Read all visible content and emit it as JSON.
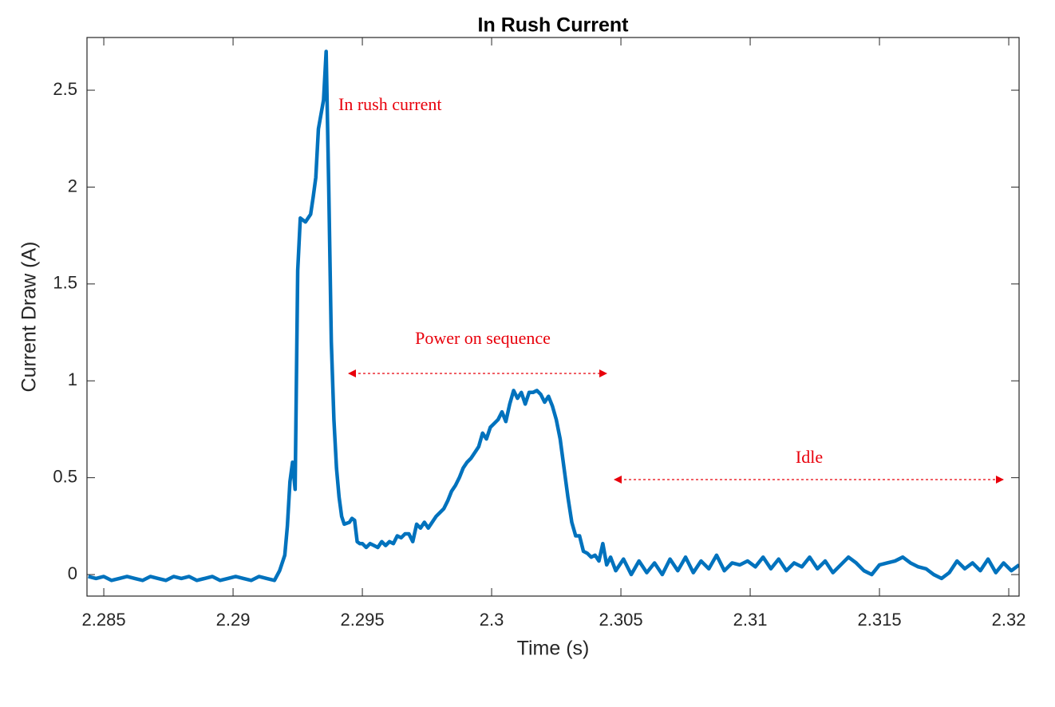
{
  "chart_data": {
    "type": "line",
    "title": "In Rush Current",
    "x_label": "Time (s)",
    "y_label": "Current Draw (A)",
    "color": "#0072bd",
    "xlim": [
      2.28435,
      2.3204
    ],
    "ylim": [
      -0.111,
      2.772
    ],
    "xticks": [
      2.285,
      2.29,
      2.295,
      2.3,
      2.305,
      2.31,
      2.315,
      2.32
    ],
    "yticks": [
      0,
      0.5,
      1,
      1.5,
      2,
      2.5
    ],
    "annotations": [
      "In rush current",
      "Power on sequence",
      "Idle"
    ],
    "x": [
      2.2844,
      2.2847,
      2.285,
      2.2853,
      2.2856,
      2.2859,
      2.2862,
      2.2865,
      2.2868,
      2.2871,
      2.2874,
      2.2877,
      2.288,
      2.2883,
      2.2886,
      2.2889,
      2.2892,
      2.2895,
      2.2898,
      2.2901,
      2.2904,
      2.2907,
      2.291,
      2.2913,
      2.2916,
      2.2918,
      2.292,
      2.2921,
      2.2922,
      2.2923,
      2.2924,
      2.2925,
      2.2926,
      2.2928,
      2.293,
      2.2931,
      2.2932,
      2.2933,
      2.2935,
      2.2936,
      2.2937,
      2.2938,
      2.2939,
      2.294,
      2.2941,
      2.2942,
      2.2943,
      2.2945,
      2.2946,
      2.2947,
      2.2948,
      2.2949,
      2.295,
      2.29515,
      2.2953,
      2.29545,
      2.2956,
      2.29575,
      2.2959,
      2.29605,
      2.2962,
      2.29635,
      2.2965,
      2.29665,
      2.2968,
      2.29695,
      2.2971,
      2.29725,
      2.2974,
      2.29755,
      2.2977,
      2.29785,
      2.298,
      2.29815,
      2.2983,
      2.29845,
      2.2986,
      2.29875,
      2.2989,
      2.29905,
      2.2992,
      2.29935,
      2.2995,
      2.29965,
      2.2998,
      2.29995,
      2.3001,
      2.30025,
      2.3004,
      2.30055,
      2.3007,
      2.30085,
      2.301,
      2.30115,
      2.3013,
      2.30145,
      2.3016,
      2.30175,
      2.3019,
      2.30205,
      2.3022,
      2.30235,
      2.3025,
      2.30265,
      2.3028,
      2.30295,
      2.3031,
      2.30325,
      2.3034,
      2.30355,
      2.3037,
      2.30385,
      2.304,
      2.30415,
      2.3043,
      2.30445,
      2.3046,
      2.3048,
      2.3051,
      2.3054,
      2.3057,
      2.306,
      2.3063,
      2.3066,
      2.3069,
      2.3072,
      2.3075,
      2.3078,
      2.3081,
      2.3084,
      2.3087,
      2.309,
      2.3093,
      2.3096,
      2.3099,
      2.3102,
      2.3105,
      2.3108,
      2.3111,
      2.3114,
      2.3117,
      2.312,
      2.3123,
      2.3126,
      2.3129,
      2.3132,
      2.3135,
      2.3138,
      2.3141,
      2.3144,
      2.3147,
      2.315,
      2.3153,
      2.3156,
      2.3159,
      2.3162,
      2.3165,
      2.3168,
      2.3171,
      2.3174,
      2.3177,
      2.318,
      2.3183,
      2.3186,
      2.3189,
      2.3192,
      2.3195,
      2.3198,
      2.3201,
      2.3204
    ],
    "values": [
      -0.01,
      -0.02,
      -0.01,
      -0.03,
      -0.02,
      -0.01,
      -0.02,
      -0.03,
      -0.01,
      -0.02,
      -0.03,
      -0.01,
      -0.02,
      -0.01,
      -0.03,
      -0.02,
      -0.01,
      -0.03,
      -0.02,
      -0.01,
      -0.02,
      -0.03,
      -0.01,
      -0.02,
      -0.03,
      0.02,
      0.1,
      0.25,
      0.48,
      0.58,
      0.44,
      1.57,
      1.84,
      1.82,
      1.86,
      1.95,
      2.05,
      2.3,
      2.45,
      2.7,
      2.0,
      1.2,
      0.8,
      0.55,
      0.4,
      0.3,
      0.26,
      0.27,
      0.29,
      0.28,
      0.17,
      0.16,
      0.16,
      0.14,
      0.16,
      0.15,
      0.14,
      0.17,
      0.15,
      0.17,
      0.16,
      0.2,
      0.19,
      0.21,
      0.21,
      0.17,
      0.26,
      0.24,
      0.27,
      0.24,
      0.27,
      0.3,
      0.32,
      0.34,
      0.38,
      0.43,
      0.46,
      0.5,
      0.55,
      0.58,
      0.6,
      0.63,
      0.66,
      0.73,
      0.7,
      0.76,
      0.78,
      0.8,
      0.84,
      0.79,
      0.88,
      0.95,
      0.91,
      0.94,
      0.88,
      0.94,
      0.94,
      0.95,
      0.93,
      0.89,
      0.92,
      0.87,
      0.8,
      0.7,
      0.55,
      0.4,
      0.27,
      0.2,
      0.2,
      0.12,
      0.11,
      0.09,
      0.1,
      0.07,
      0.16,
      0.05,
      0.09,
      0.02,
      0.08,
      0.0,
      0.07,
      0.01,
      0.06,
      0.0,
      0.08,
      0.02,
      0.09,
      0.01,
      0.07,
      0.03,
      0.1,
      0.02,
      0.06,
      0.05,
      0.07,
      0.04,
      0.09,
      0.03,
      0.08,
      0.02,
      0.06,
      0.04,
      0.09,
      0.03,
      0.07,
      0.01,
      0.05,
      0.09,
      0.06,
      0.02,
      0.0,
      0.05,
      0.06,
      0.07,
      0.09,
      0.06,
      0.04,
      0.03,
      0.0,
      -0.02,
      0.01,
      0.07,
      0.03,
      0.06,
      0.02,
      0.08,
      0.01,
      0.06,
      0.02,
      0.05
    ]
  }
}
